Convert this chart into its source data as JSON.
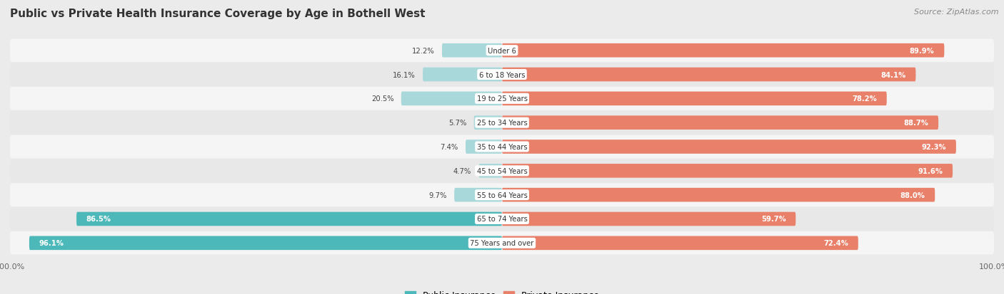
{
  "title": "Public vs Private Health Insurance Coverage by Age in Bothell West",
  "source": "Source: ZipAtlas.com",
  "categories": [
    "Under 6",
    "6 to 18 Years",
    "19 to 25 Years",
    "25 to 34 Years",
    "35 to 44 Years",
    "45 to 54 Years",
    "55 to 64 Years",
    "65 to 74 Years",
    "75 Years and over"
  ],
  "public_values": [
    12.2,
    16.1,
    20.5,
    5.7,
    7.4,
    4.7,
    9.7,
    86.5,
    96.1
  ],
  "private_values": [
    89.9,
    84.1,
    78.2,
    88.7,
    92.3,
    91.6,
    88.0,
    59.7,
    72.4
  ],
  "public_color": "#4db8ba",
  "private_color": "#e8806a",
  "public_color_light": "#a8d8da",
  "private_color_light": "#f2b5a8",
  "bg_color": "#ebebeb",
  "row_bg_light": "#f5f5f5",
  "row_bg_dark": "#e8e8e8",
  "title_color": "#333333",
  "source_color": "#888888",
  "label_dark_color": "#444444",
  "legend_public": "Public Insurance",
  "legend_private": "Private Insurance"
}
